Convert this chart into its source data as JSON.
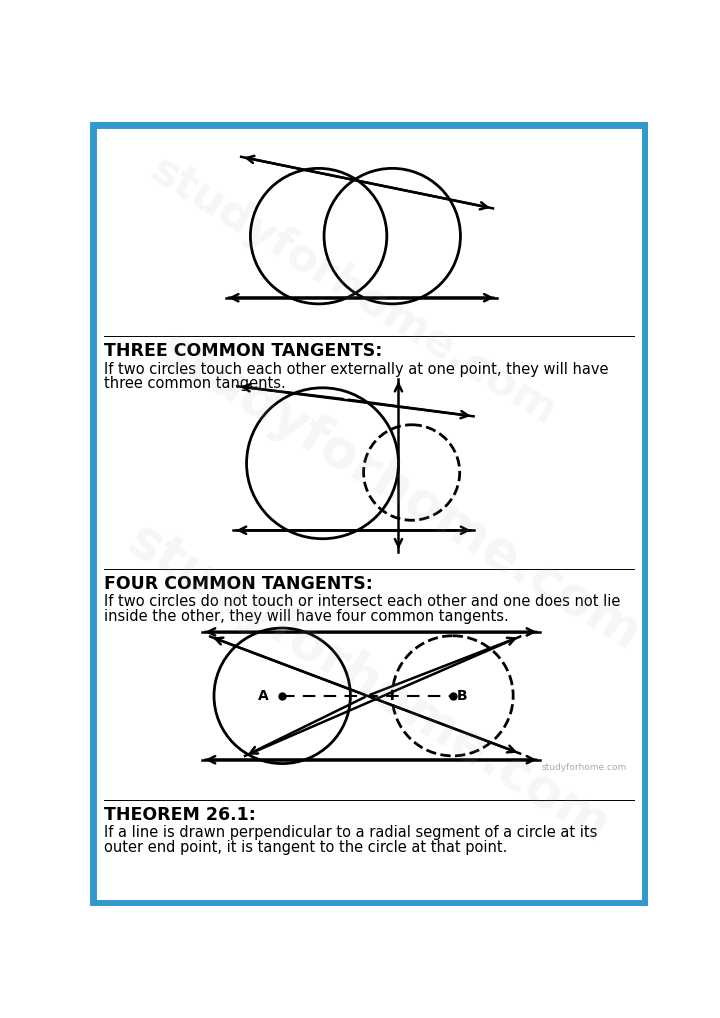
{
  "bg_color": "#ffffff",
  "border_color": "#3399cc",
  "border_width": 5,
  "section1_title": "THREE COMMON TANGENTS:",
  "section1_text1": "If two circles touch each other externally at one point, they will have",
  "section1_text2": "three common tangents.",
  "section2_title": "FOUR COMMON TANGENTS:",
  "section2_text1": "If two circles do not touch or intersect each other and one does not lie",
  "section2_text2": "inside the other, they will have four common tangents.",
  "section3_title": "THEOREM 26.1:",
  "section3_text1": "If a line is drawn perpendicular to a radial segment of a circle at its",
  "section3_text2": "outer end point, it is tangent to the circle at that point.",
  "watermark_small": "studyforhome.com",
  "label_A": "A",
  "label_B": "B"
}
